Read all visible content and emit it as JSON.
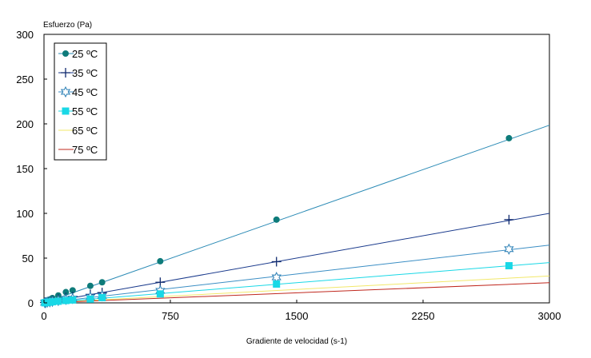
{
  "chart_data": {
    "type": "scatter",
    "ylabel": "Esfuerzo (Pa)",
    "xlabel": "Gradiente de velocidad (s-1)",
    "xlim": [
      0,
      3000
    ],
    "ylim": [
      0,
      300
    ],
    "x_ticks": [
      "0",
      "750",
      "1500",
      "2250",
      "3000"
    ],
    "y_ticks": [
      "0",
      "50",
      "100",
      "150",
      "200",
      "250",
      "300"
    ],
    "grid": false,
    "legend_position": "top-left",
    "x": [
      5,
      10,
      20,
      35,
      50,
      85,
      130,
      170,
      275,
      345,
      690,
      1380,
      2760
    ],
    "series": [
      {
        "name": "25 ºC",
        "color": "#0e7b7a",
        "marker": "filled-circle",
        "line_color": "#2a8ab5",
        "values": [
          0.7,
          1.3,
          2.4,
          3.8,
          5.4,
          8.3,
          12.0,
          14.0,
          19.0,
          23.0,
          46.5,
          93.0,
          184.0
        ],
        "fit": [
          [
            0,
            0
          ],
          [
            3000,
            198.5
          ]
        ]
      },
      {
        "name": "35 ºC",
        "color": "#102a6e",
        "marker": "plus",
        "line_color": "#1a3a8c",
        "values": [
          0.4,
          0.7,
          1.2,
          1.9,
          2.7,
          4.2,
          6.0,
          7.0,
          9.5,
          11.5,
          23.0,
          46.0,
          93.0
        ],
        "fit": [
          [
            0,
            0
          ],
          [
            3000,
            100.0
          ]
        ]
      },
      {
        "name": "45 ºC",
        "color": "#2a7fb5",
        "marker": "hollow-star",
        "line_color": "#3b8ec4",
        "values": [
          0.2,
          0.4,
          0.8,
          1.2,
          1.6,
          2.6,
          3.8,
          4.8,
          6.4,
          7.8,
          13.5,
          28.5,
          60.0
        ],
        "fit": [
          [
            0,
            0
          ],
          [
            3000,
            64.5
          ]
        ]
      },
      {
        "name": "55 ºC",
        "color": "#19d8e6",
        "marker": "filled-square",
        "line_color": "#19d8e6",
        "values": [
          0.1,
          0.3,
          0.6,
          0.9,
          1.2,
          1.8,
          2.6,
          3.2,
          4.2,
          5.8,
          10.0,
          21.0,
          41.5
        ],
        "fit": [
          [
            0,
            0
          ],
          [
            3000,
            45.0
          ]
        ]
      },
      {
        "name": "65 ºC",
        "color": "#f2e86a",
        "marker": "line",
        "line_color": "#f2e86a",
        "values": [],
        "fit": [
          [
            0,
            0
          ],
          [
            3000,
            30.0
          ]
        ]
      },
      {
        "name": "75 ºC",
        "color": "#c0281e",
        "marker": "line",
        "line_color": "#c0281e",
        "values": [],
        "fit": [
          [
            0,
            0
          ],
          [
            3000,
            22.5
          ]
        ]
      }
    ]
  }
}
